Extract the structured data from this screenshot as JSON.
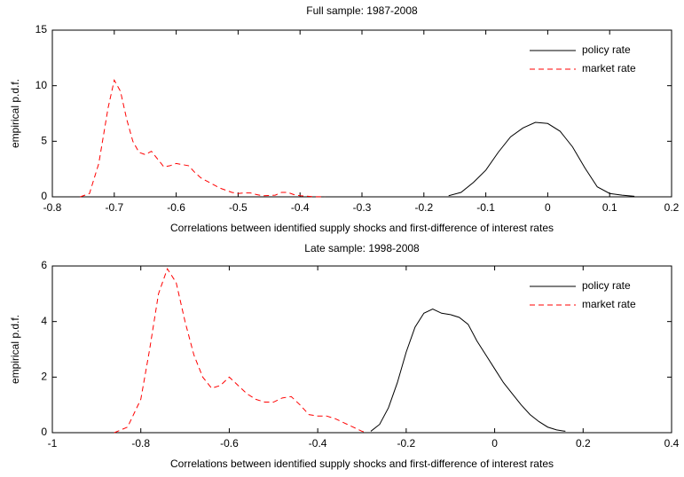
{
  "chart_data": [
    {
      "type": "line",
      "title": "Full sample: 1987-2008",
      "xlabel": "Correlations between identified supply shocks and first-difference of interest rates",
      "ylabel": "empirical p.d.f.",
      "xlim": [
        -0.8,
        0.2
      ],
      "xticks": [
        -0.8,
        -0.7,
        -0.6,
        -0.5,
        -0.4,
        -0.3,
        -0.2,
        -0.1,
        0,
        0.1,
        0.2
      ],
      "ylim": [
        0,
        15
      ],
      "yticks": [
        0,
        5,
        10,
        15
      ],
      "legend": "upper right",
      "series": [
        {
          "name": "policy rate",
          "color": "#000000",
          "line_style": "solid",
          "x": [
            -0.16,
            -0.14,
            -0.12,
            -0.1,
            -0.08,
            -0.06,
            -0.04,
            -0.02,
            0,
            0.02,
            0.04,
            0.06,
            0.08,
            0.1,
            0.12,
            0.14
          ],
          "values": [
            0.1,
            0.4,
            1.3,
            2.4,
            4.0,
            5.4,
            6.2,
            6.7,
            6.6,
            5.9,
            4.5,
            2.6,
            0.9,
            0.3,
            0.15,
            0.05
          ]
        },
        {
          "name": "market rate",
          "color": "#ff0000",
          "line_style": "dashed",
          "x": [
            -0.755,
            -0.74,
            -0.725,
            -0.71,
            -0.7,
            -0.69,
            -0.68,
            -0.67,
            -0.66,
            -0.65,
            -0.64,
            -0.63,
            -0.62,
            -0.61,
            -0.6,
            -0.59,
            -0.58,
            -0.57,
            -0.56,
            -0.55,
            -0.54,
            -0.53,
            -0.52,
            -0.51,
            -0.5,
            -0.49,
            -0.48,
            -0.47,
            -0.46,
            -0.44,
            -0.43,
            -0.42,
            -0.41,
            -0.4,
            -0.38,
            -0.36
          ],
          "values": [
            0,
            0.3,
            3,
            8,
            10.5,
            9.5,
            7,
            5,
            4,
            3.8,
            4.1,
            3.4,
            2.7,
            2.8,
            3.0,
            2.9,
            2.8,
            2.2,
            1.7,
            1.4,
            1.1,
            0.8,
            0.6,
            0.4,
            0.3,
            0.35,
            0.35,
            0.2,
            0.1,
            0.15,
            0.4,
            0.4,
            0.2,
            0.1,
            0.02,
            0
          ]
        }
      ]
    },
    {
      "type": "line",
      "title": "Late sample: 1998-2008",
      "xlabel": "Correlations between identified supply shocks and first-difference of interest rates",
      "ylabel": "empirical p.d.f.",
      "xlim": [
        -1,
        0.4
      ],
      "xticks": [
        -1,
        -0.8,
        -0.6,
        -0.4,
        -0.2,
        0,
        0.2,
        0.4
      ],
      "ylim": [
        0,
        6
      ],
      "yticks": [
        0,
        2,
        4,
        6
      ],
      "legend": "upper right",
      "series": [
        {
          "name": "policy rate",
          "color": "#000000",
          "line_style": "solid",
          "x": [
            -0.28,
            -0.26,
            -0.24,
            -0.22,
            -0.2,
            -0.18,
            -0.16,
            -0.14,
            -0.12,
            -0.1,
            -0.08,
            -0.06,
            -0.04,
            -0.02,
            0,
            0.02,
            0.04,
            0.06,
            0.08,
            0.1,
            0.12,
            0.14,
            0.16
          ],
          "values": [
            0.05,
            0.3,
            0.9,
            1.8,
            2.9,
            3.8,
            4.3,
            4.45,
            4.3,
            4.25,
            4.15,
            3.9,
            3.3,
            2.8,
            2.3,
            1.8,
            1.4,
            1.0,
            0.65,
            0.4,
            0.2,
            0.1,
            0.05
          ]
        },
        {
          "name": "market rate",
          "color": "#ff0000",
          "line_style": "dashed",
          "x": [
            -0.86,
            -0.83,
            -0.8,
            -0.78,
            -0.76,
            -0.74,
            -0.72,
            -0.7,
            -0.68,
            -0.66,
            -0.64,
            -0.62,
            -0.6,
            -0.58,
            -0.56,
            -0.54,
            -0.52,
            -0.5,
            -0.48,
            -0.46,
            -0.44,
            -0.42,
            -0.4,
            -0.38,
            -0.36,
            -0.34,
            -0.32,
            -0.3,
            -0.29
          ],
          "values": [
            0,
            0.2,
            1.2,
            3.0,
            5.0,
            5.9,
            5.4,
            4.0,
            2.8,
            2.0,
            1.6,
            1.7,
            2.0,
            1.7,
            1.4,
            1.2,
            1.1,
            1.1,
            1.25,
            1.3,
            1.0,
            0.65,
            0.6,
            0.6,
            0.5,
            0.35,
            0.2,
            0.05,
            0
          ]
        }
      ]
    }
  ]
}
